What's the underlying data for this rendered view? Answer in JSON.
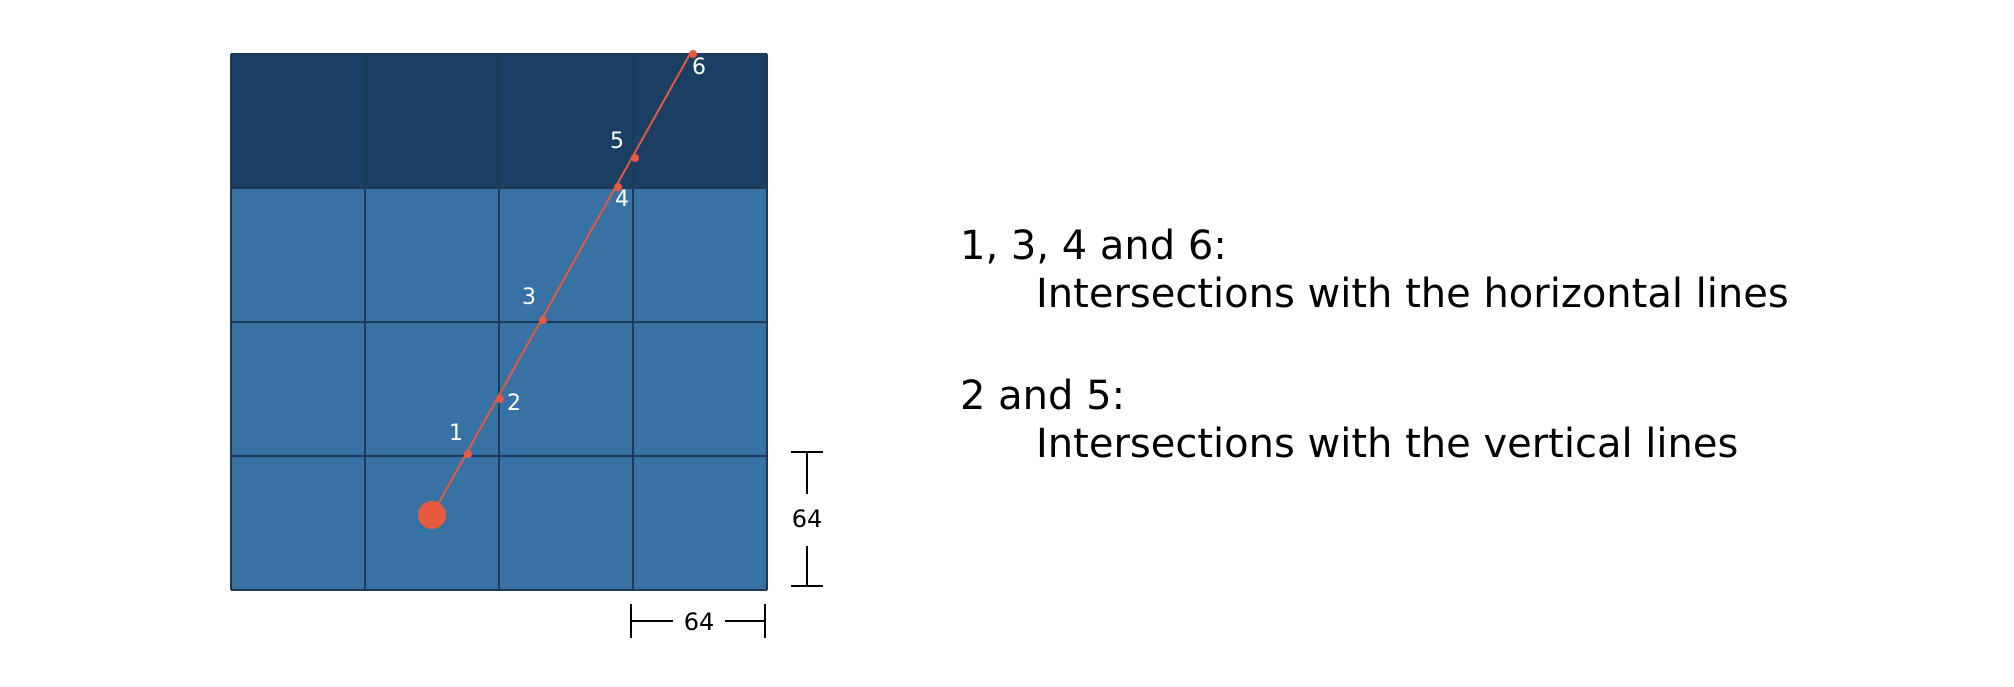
{
  "colors": {
    "wall": "#1a3f62",
    "floor": "#3871a3",
    "grid_line": "#1d3b58",
    "ray": "#e85a40",
    "point_label": "#ffffff",
    "dimension": "#000000"
  },
  "grid": {
    "rows": 4,
    "cols": 4,
    "wall_rows": [
      0
    ]
  },
  "points": [
    {
      "label": "1"
    },
    {
      "label": "2"
    },
    {
      "label": "3"
    },
    {
      "label": "4"
    },
    {
      "label": "5"
    },
    {
      "label": "6"
    }
  ],
  "dimensions": {
    "vertical_label": "64",
    "horizontal_label": "64"
  },
  "legend": {
    "horizontal": {
      "heading": "1, 3, 4 and 6:",
      "detail": "Intersections with the horizontal lines"
    },
    "vertical": {
      "heading": "2 and 5:",
      "detail": "Intersections with the vertical lines"
    }
  }
}
